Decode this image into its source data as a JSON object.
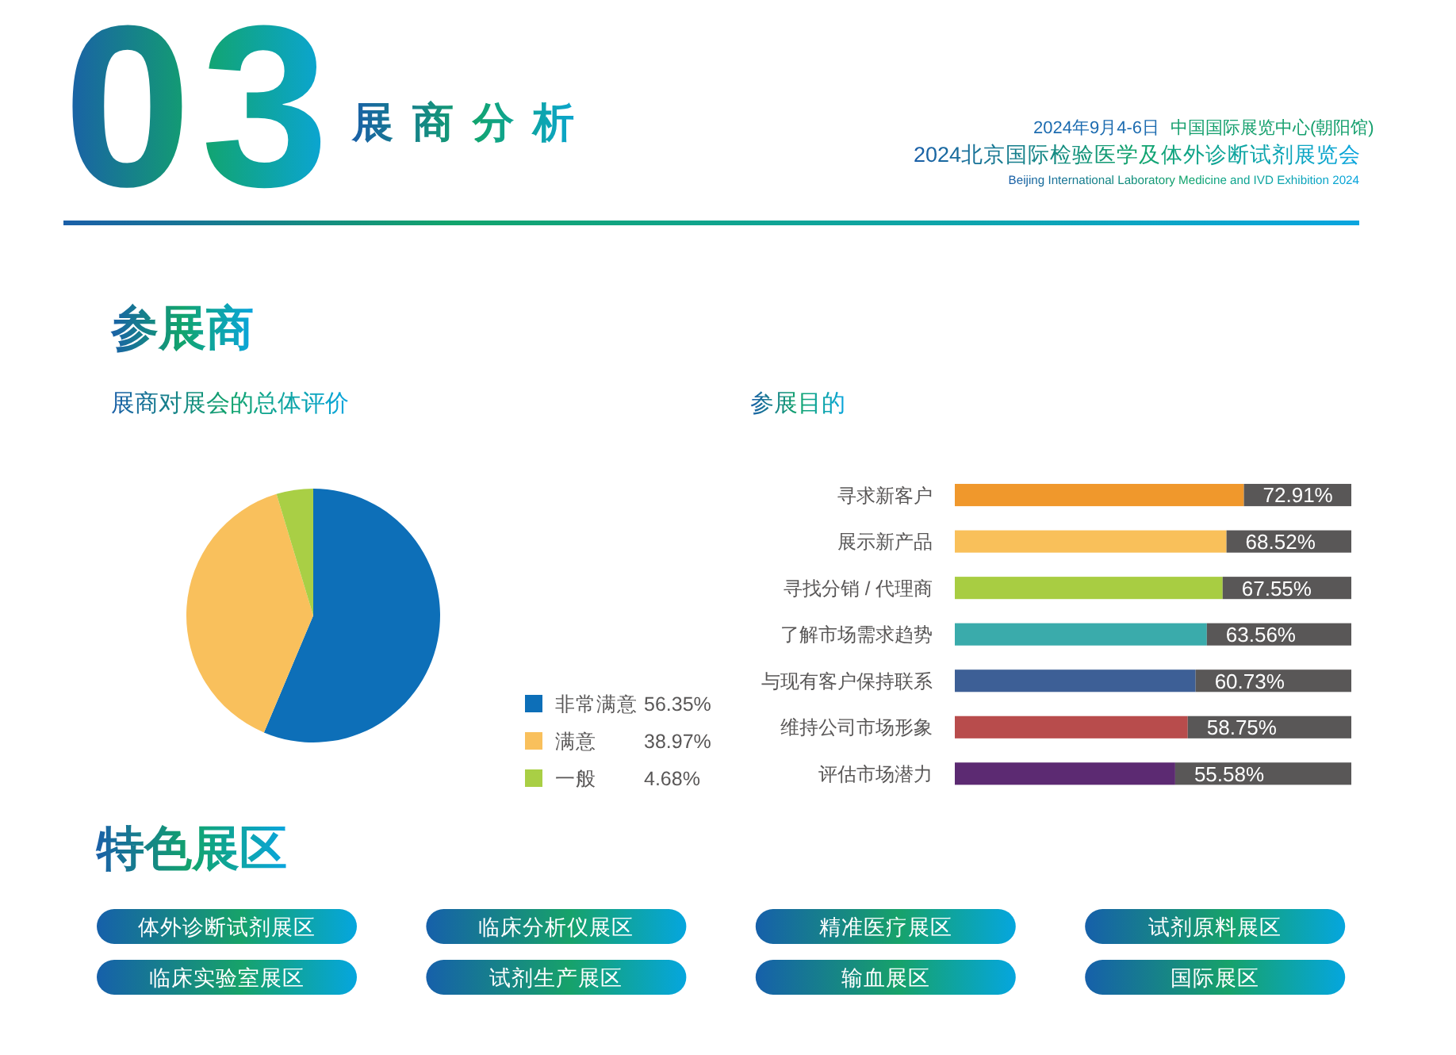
{
  "chart_data": [
    {
      "type": "other",
      "title": "展商分析",
      "annotations": [
        "03",
        "2024年9月4-6日",
        "中国国际展览中心(朝阳馆)",
        "2024北京国际检验医学及体外诊断试剂展览会",
        "Beijing International Laboratory Medicine and IVD Exhibition 2024",
        "参展商"
      ]
    },
    {
      "type": "pie",
      "title": "展商对展会的总体评价",
      "categories": [
        "非常满意",
        "满意",
        "一般"
      ],
      "values": [
        56.35,
        38.97,
        4.68
      ],
      "value_labels": [
        "56.35%",
        "38.97%",
        "4.68%"
      ],
      "colors": [
        "#0d6fb8",
        "#f9c05c",
        "#a9cf45"
      ],
      "legend": "bottom right"
    },
    {
      "type": "bar",
      "title": "参展目的",
      "orientation": "horizontal",
      "stacked": true,
      "categories": [
        "寻求新客户",
        "展示新产品",
        "寻找分销 / 代理商",
        "了解市场需求趋势",
        "与现有客户保持联系",
        "维持公司市场形象",
        "评估市场潜力"
      ],
      "series": [
        {
          "colors": [
            "#f0982c",
            "#f9c05a",
            "#a8cd42",
            "#3aabab",
            "#3d5f96",
            "#b84c4c",
            "#5c2a72"
          ],
          "values": [
            72.91,
            68.52,
            67.55,
            63.56,
            60.73,
            58.75,
            55.58
          ],
          "value_labels": [
            "72.91%",
            "68.52%",
            "67.55%",
            "63.56%",
            "60.73%",
            "58.75%",
            "55.58%"
          ]
        },
        {
          "color": "#595757",
          "values": [
            27.09,
            31.48,
            32.45,
            36.44,
            39.27,
            41.25,
            44.42
          ]
        }
      ],
      "xlim": [
        0,
        100
      ],
      "tick_labels": "y"
    },
    {
      "type": "other",
      "title": "特色展区",
      "annotations": [
        "体外诊断试剂展区",
        "临床分析仪展区",
        "精准医疗展区",
        "试剂原料展区",
        "临床实验室展区",
        "试剂生产展区",
        "输血展区",
        "国际展区"
      ]
    }
  ]
}
